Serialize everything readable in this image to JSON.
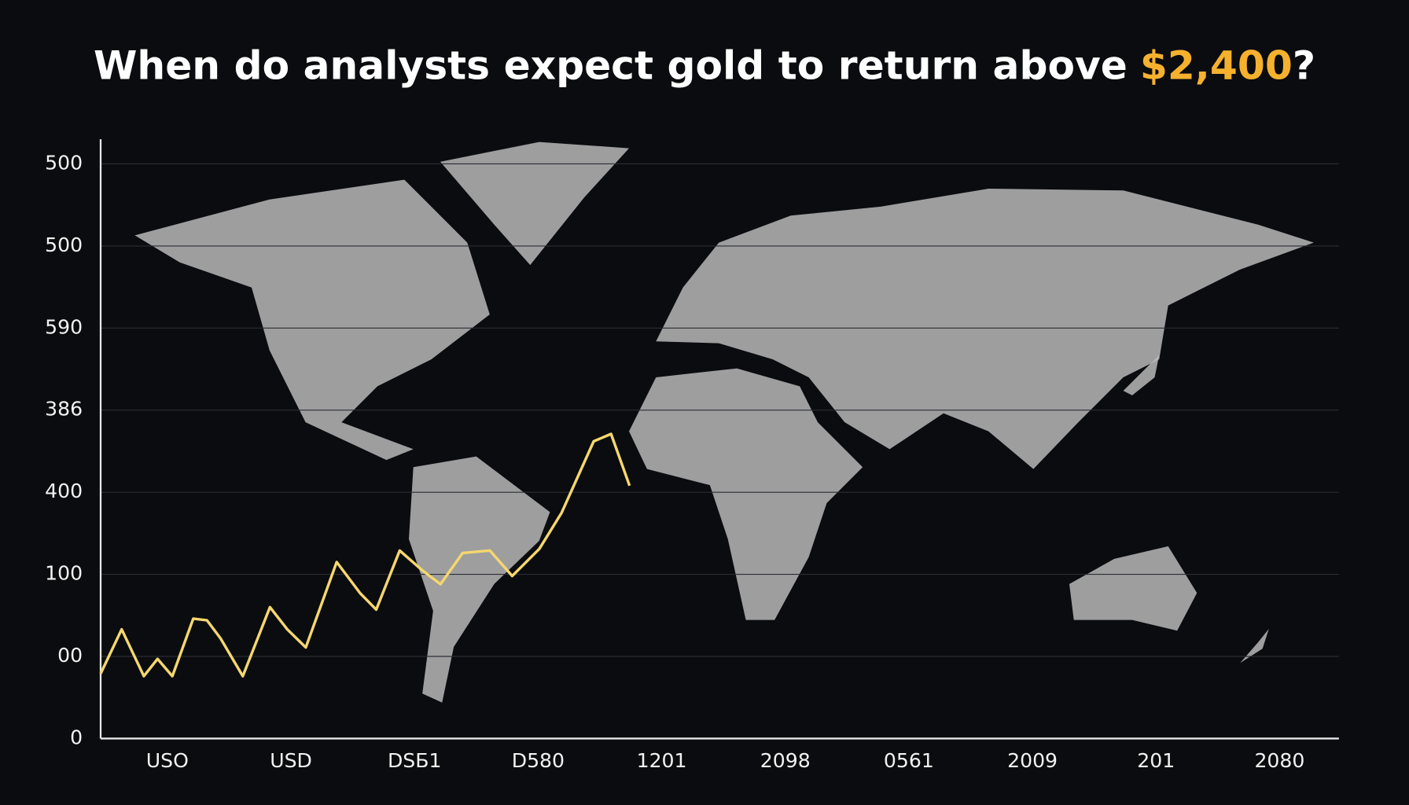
{
  "chart_data": {
    "type": "line",
    "title": {
      "text": "When do analysts expect gold to return above",
      "highlight": "$2,400",
      "end": "?"
    },
    "title_color": "#ffffff",
    "highlight_color": "#f5b12e",
    "categories": [
      "USO",
      "USD",
      "DSБ1",
      "D580",
      "1201",
      "2098",
      "0561",
      "2009",
      "201",
      "2080"
    ],
    "category_colors": [
      "#f2f2f2",
      "#f2f2f2",
      "#f2f2f2",
      "#f5b12e",
      "#f2f2f2",
      "#f2f2f2",
      "#f5b12e",
      "#f5b12e",
      "#f5b12e",
      "#f2f2f2"
    ],
    "xlim": [
      -0.54,
      9.48
    ],
    "ylim": [
      0,
      7.3
    ],
    "yticks": [
      {
        "value": 0,
        "label": "0"
      },
      {
        "value": 1,
        "label": "00"
      },
      {
        "value": 2,
        "label": "100"
      },
      {
        "value": 3,
        "label": "400"
      },
      {
        "value": 4,
        "label": "386"
      },
      {
        "value": 5,
        "label": "590"
      },
      {
        "value": 6,
        "label": "500"
      },
      {
        "value": 7,
        "label": "500"
      }
    ],
    "grid": true,
    "series": [
      {
        "color": "#f5d76e",
        "x": [
          -0.54,
          -0.37,
          -0.19,
          -0.08,
          0.04,
          0.21,
          0.32,
          0.43,
          0.61,
          0.83,
          0.97,
          1.12,
          1.37,
          1.56,
          1.69,
          1.88,
          2.07,
          2.21,
          2.39,
          2.61,
          2.79,
          3.01,
          3.19,
          3.45,
          3.59,
          3.74
        ],
        "values": [
          0.79,
          1.33,
          0.76,
          0.97,
          0.76,
          1.46,
          1.44,
          1.22,
          0.76,
          1.6,
          1.33,
          1.11,
          2.15,
          1.77,
          1.57,
          2.29,
          2.04,
          1.88,
          2.26,
          2.29,
          1.98,
          2.31,
          2.75,
          3.62,
          3.71,
          3.08
        ]
      }
    ]
  }
}
